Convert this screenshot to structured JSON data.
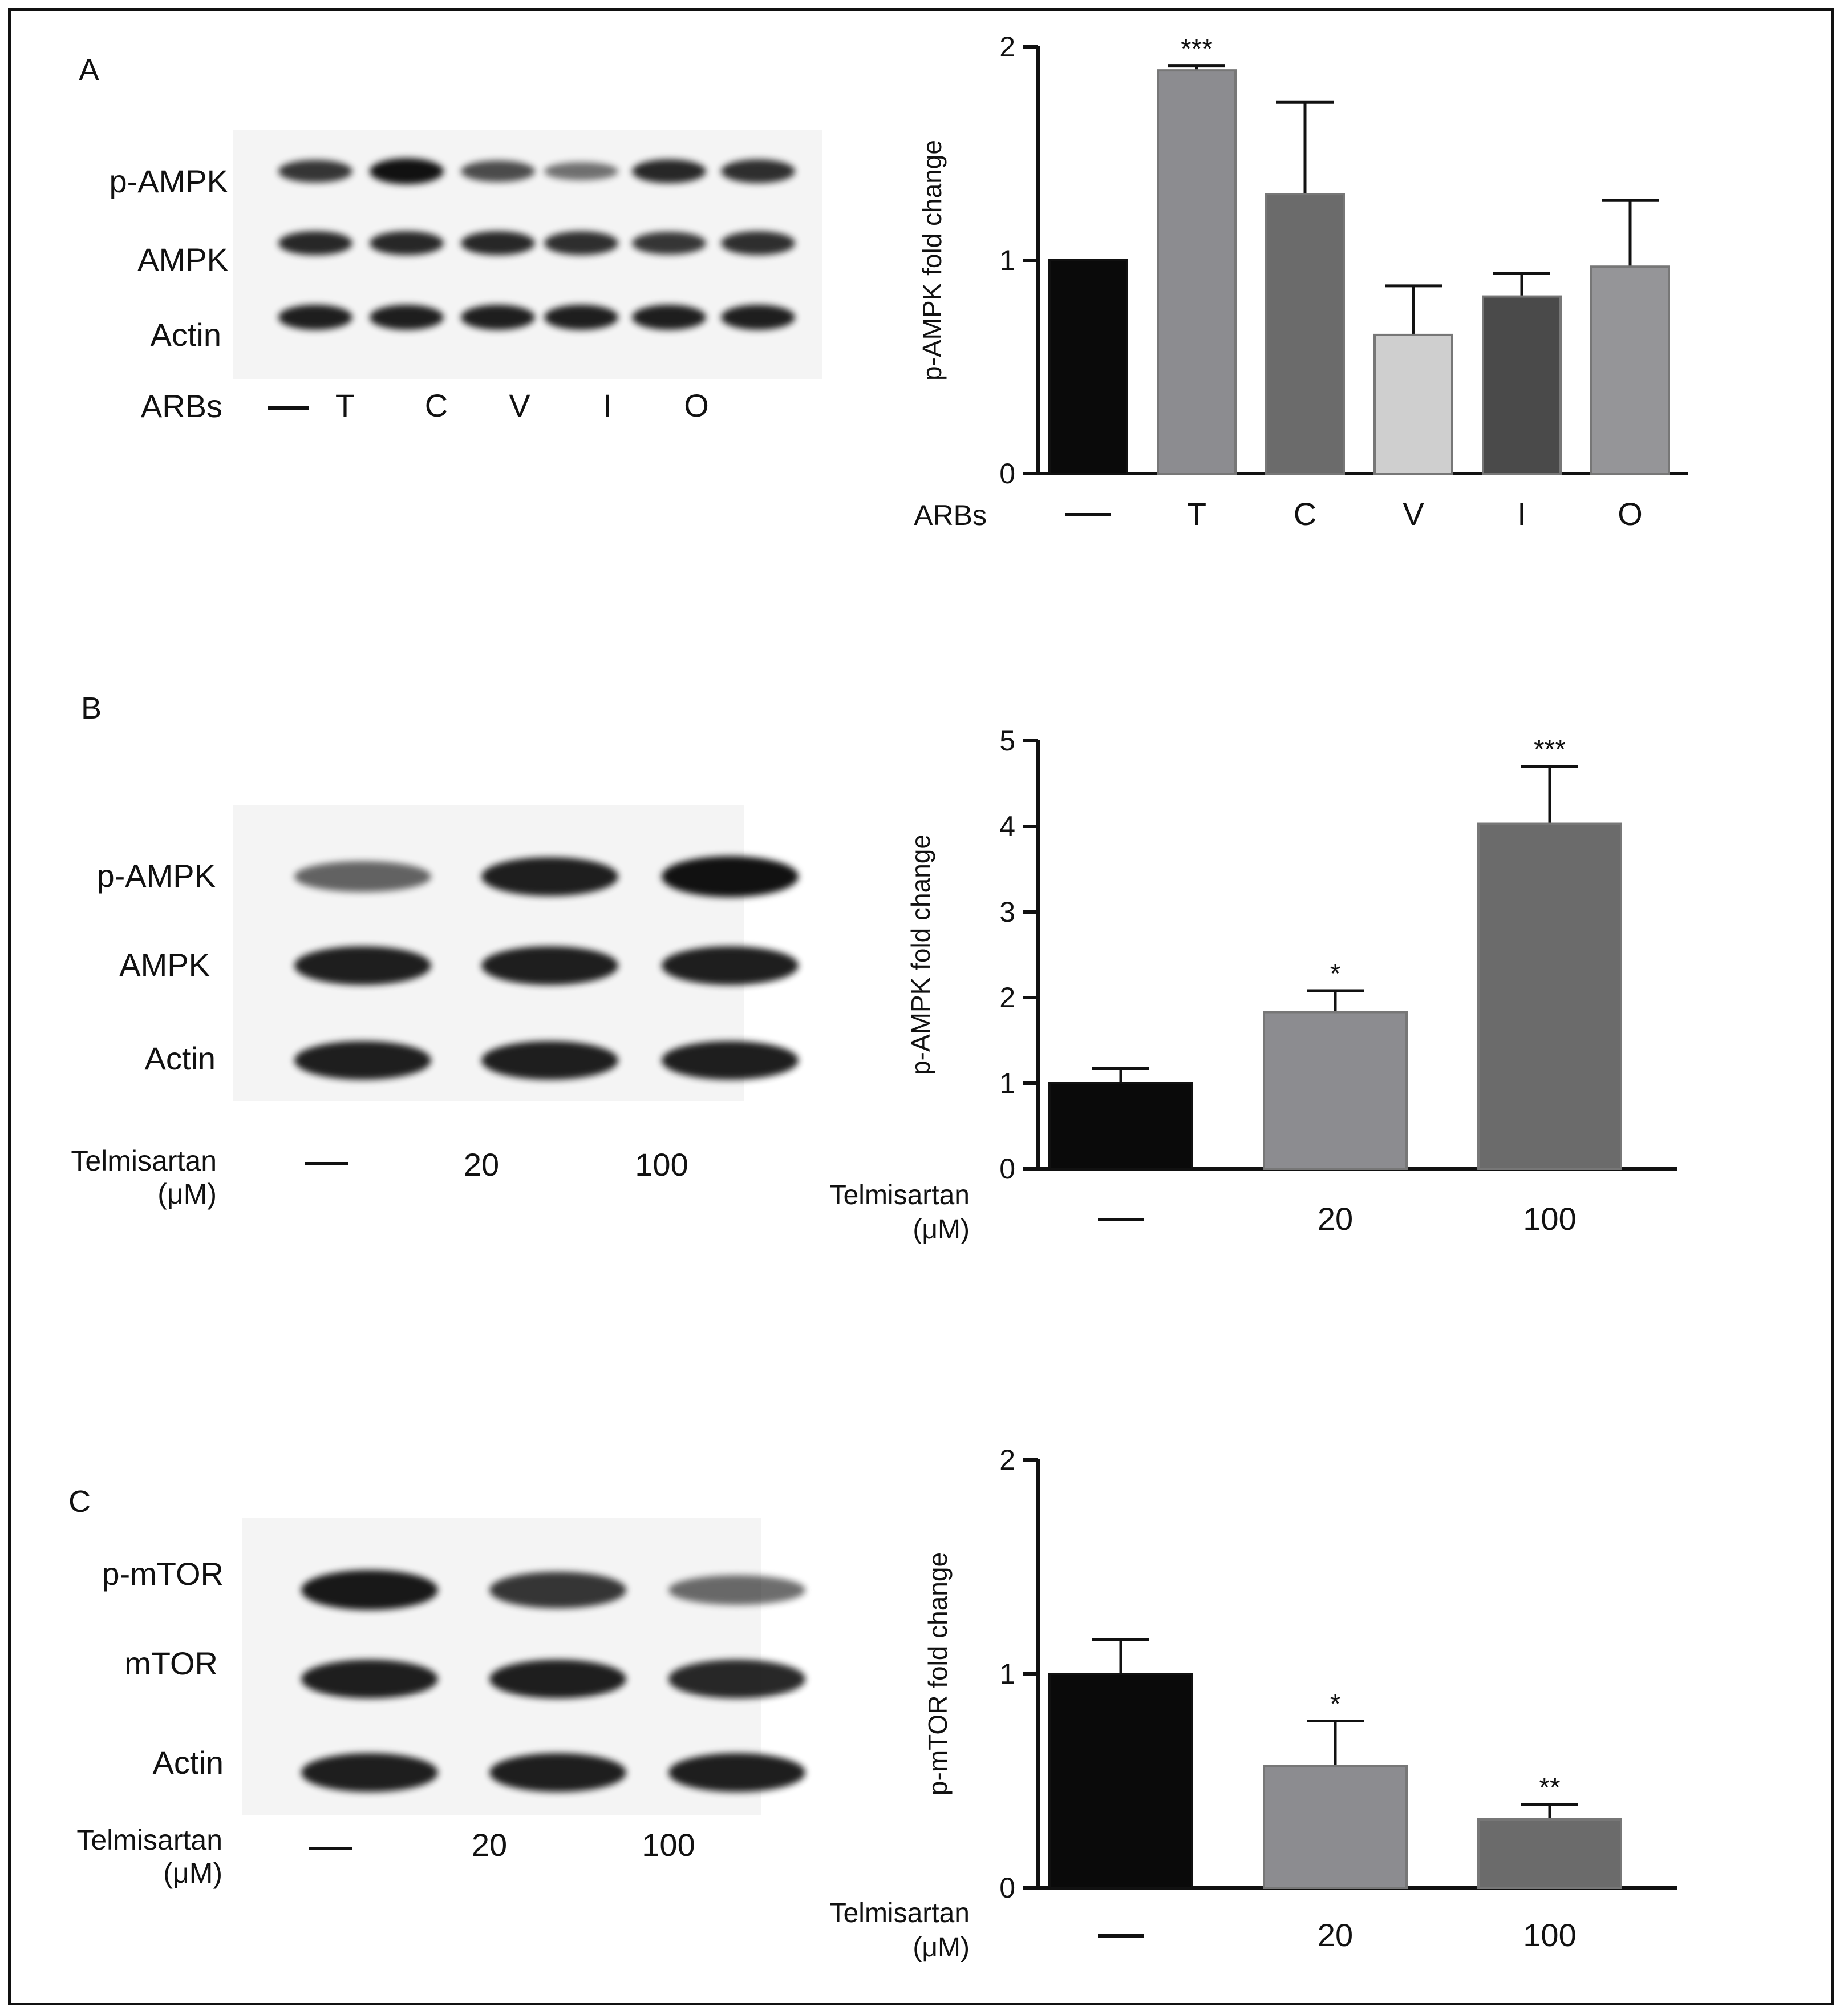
{
  "panels": [
    {
      "letter": "A",
      "blot": {
        "rows": [
          "p-AMPK",
          "AMPK",
          "Actin"
        ],
        "treatment_label": "ARBs",
        "lanes": [
          "—",
          "T",
          "C",
          "V",
          "I",
          "O"
        ],
        "band_intensity": [
          [
            0.75,
            1.0,
            0.6,
            0.35,
            0.85,
            0.8
          ],
          [
            0.85,
            0.85,
            0.85,
            0.8,
            0.75,
            0.8
          ],
          [
            0.9,
            0.9,
            0.9,
            0.9,
            0.9,
            0.9
          ]
        ]
      }
    },
    {
      "letter": "B",
      "blot": {
        "rows": [
          "p-AMPK",
          "AMPK",
          "Actin"
        ],
        "treatment_label": [
          "Telmisartan",
          "(μM)"
        ],
        "lanes": [
          "—",
          "20",
          "100"
        ],
        "band_intensity": [
          [
            0.45,
            0.9,
            1.0
          ],
          [
            0.9,
            0.9,
            0.9
          ],
          [
            0.9,
            0.9,
            0.9
          ]
        ]
      }
    },
    {
      "letter": "C",
      "blot": {
        "rows": [
          "p-mTOR",
          "mTOR",
          "Actin"
        ],
        "treatment_label": [
          "Telmisartan",
          "(μM)"
        ],
        "lanes": [
          "—",
          "20",
          "100"
        ],
        "band_intensity": [
          [
            0.95,
            0.75,
            0.4
          ],
          [
            0.9,
            0.9,
            0.85
          ],
          [
            0.9,
            0.9,
            0.9
          ]
        ]
      }
    }
  ],
  "chart_data": [
    {
      "type": "bar",
      "panel": "A",
      "title": "",
      "ylabel": "p-AMPK fold change",
      "xlabel": "ARBs",
      "categories": [
        "—",
        "T",
        "C",
        "V",
        "I",
        "O"
      ],
      "values": [
        1.0,
        1.89,
        1.31,
        0.65,
        0.83,
        0.97
      ],
      "errors": [
        0.0,
        0.02,
        0.43,
        0.23,
        0.11,
        0.31
      ],
      "significance": [
        "",
        "***",
        "",
        "",
        "",
        ""
      ],
      "ylim": [
        0,
        2
      ],
      "yticks": [
        0,
        1,
        2
      ],
      "bar_colors": [
        "#0a0a0a",
        "#8c8c90",
        "#6b6b6b",
        "#cfcfcf",
        "#4a4a4a",
        "#959598"
      ]
    },
    {
      "type": "bar",
      "panel": "B",
      "title": "",
      "ylabel": "p-AMPK fold change",
      "xlabel": [
        "Telmisartan",
        "(μM)"
      ],
      "categories": [
        "—",
        "20",
        "100"
      ],
      "values": [
        1.0,
        1.83,
        4.03
      ],
      "errors": [
        0.17,
        0.25,
        0.67
      ],
      "significance": [
        "",
        "*",
        "***"
      ],
      "ylim": [
        0,
        5
      ],
      "yticks": [
        0,
        1,
        2,
        3,
        4,
        5
      ],
      "bar_colors": [
        "#0a0a0a",
        "#8c8c90",
        "#6b6b6b"
      ]
    },
    {
      "type": "bar",
      "panel": "C",
      "title": "",
      "ylabel": "p-mTOR fold change",
      "xlabel": [
        "Telmisartan",
        "(μM)"
      ],
      "categories": [
        "—",
        "20",
        "100"
      ],
      "values": [
        1.0,
        0.57,
        0.32
      ],
      "errors": [
        0.16,
        0.21,
        0.07
      ],
      "significance": [
        "",
        "*",
        "**"
      ],
      "ylim": [
        0,
        2
      ],
      "yticks": [
        0,
        1,
        2
      ],
      "bar_colors": [
        "#0a0a0a",
        "#8c8c90",
        "#6b6b6b"
      ]
    }
  ]
}
